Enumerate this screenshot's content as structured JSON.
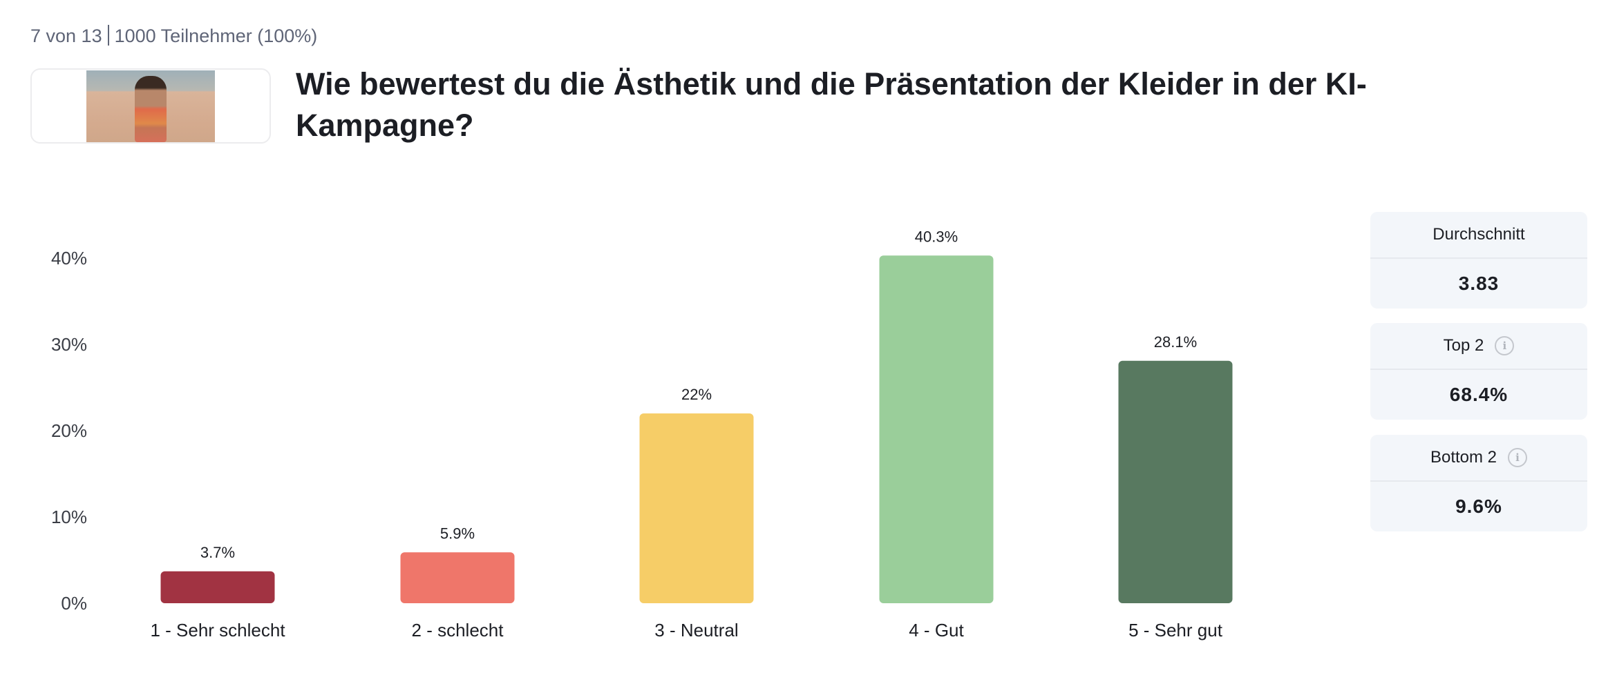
{
  "header": {
    "position": "7 von 13",
    "participants": "1000 Teilnehmer (100%)",
    "question": "Wie bewertest du die Ästhetik und die Präsentation der Kleider in der KI-Kampagne?"
  },
  "stats": {
    "average_label": "Durchschnitt",
    "average_value": "3.83",
    "top2_label": "Top 2",
    "top2_value": "68.4%",
    "bottom2_label": "Bottom 2",
    "bottom2_value": "9.6%"
  },
  "chart_data": {
    "type": "bar",
    "title": "",
    "xlabel": "",
    "ylabel": "",
    "ylim": [
      0,
      40
    ],
    "yticks": [
      0,
      10,
      20,
      30,
      40
    ],
    "ytick_labels": [
      "0%",
      "10%",
      "20%",
      "30%",
      "40%"
    ],
    "grid": false,
    "categories": [
      "1 - Sehr schlecht",
      "2 - schlecht",
      "3 - Neutral",
      "4 - Gut",
      "5 - Sehr gut"
    ],
    "values": [
      3.7,
      5.9,
      22,
      40.3,
      28.1
    ],
    "value_labels": [
      "3.7%",
      "5.9%",
      "22%",
      "40.3%",
      "28.1%"
    ],
    "colors": [
      "#a13342",
      "#ef766a",
      "#f6cd67",
      "#9ace9a",
      "#587960"
    ]
  }
}
